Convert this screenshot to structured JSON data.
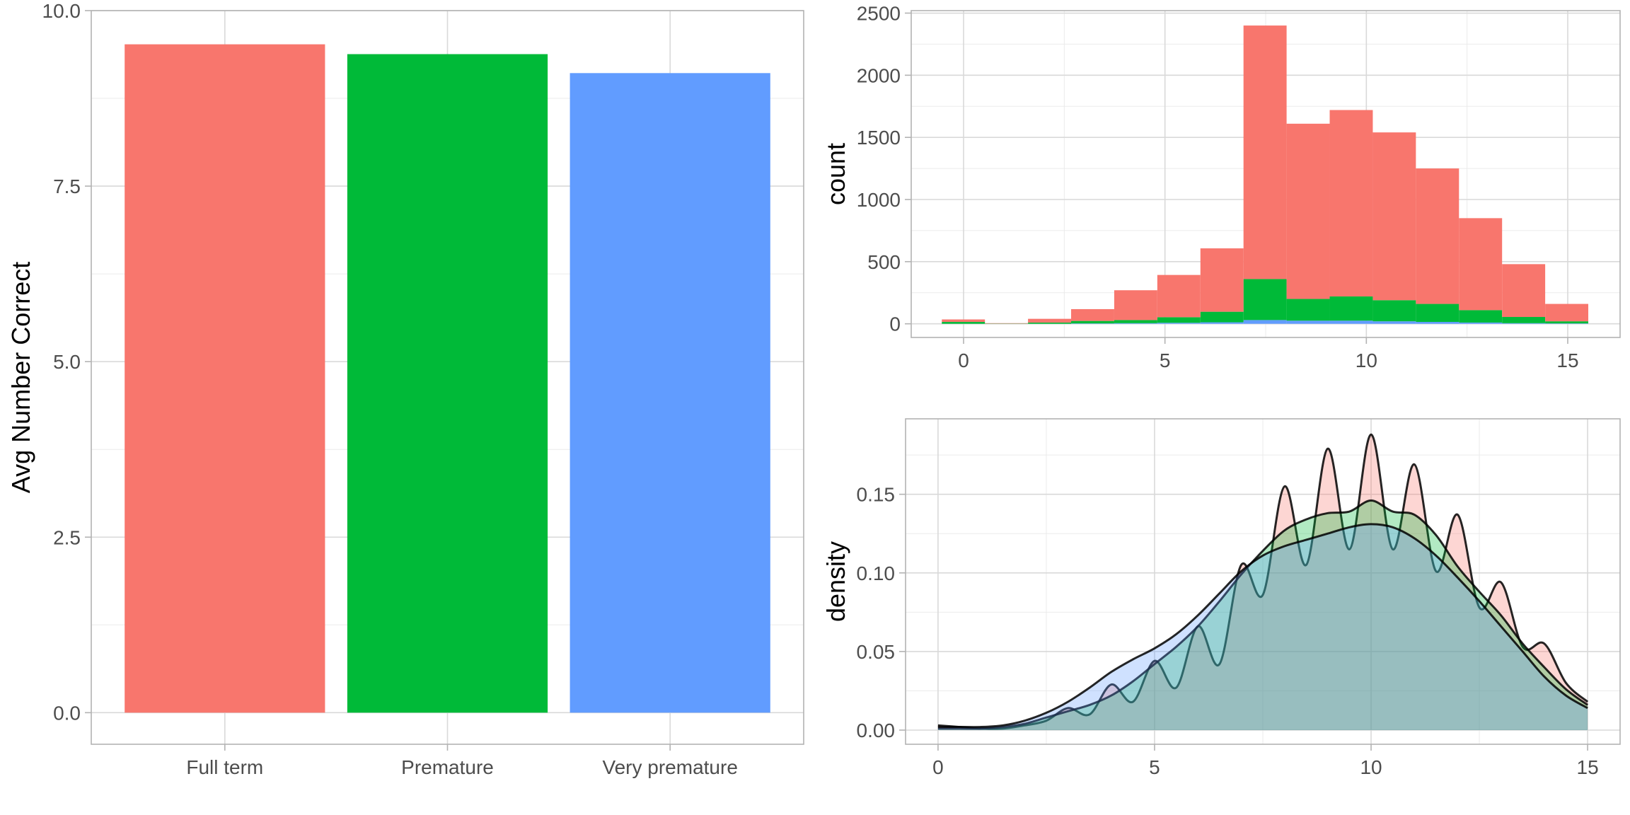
{
  "chart_data": [
    {
      "type": "bar",
      "categories": [
        "Full term",
        "Premature",
        "Very premature"
      ],
      "values": [
        9.52,
        9.38,
        9.11
      ],
      "colors": [
        "#F8766D",
        "#00BA38",
        "#619CFF"
      ],
      "title": "",
      "xlabel": "",
      "ylabel": "Avg Number Correct",
      "ylim": [
        -0.45,
        10.0
      ],
      "yticks": [
        0.0,
        2.5,
        5.0,
        7.5,
        10.0
      ],
      "ytick_labels": [
        "0.0",
        "2.5",
        "5.0",
        "7.5",
        "10.0"
      ],
      "grid": true,
      "legend": "none"
    },
    {
      "type": "histogram",
      "stacked": true,
      "bin_width": 1.07,
      "bin_starts": [
        -0.54,
        0.53,
        1.6,
        2.67,
        3.74,
        4.81,
        5.88,
        6.95,
        8.02,
        9.09,
        10.16,
        11.23,
        12.3,
        13.37,
        14.44
      ],
      "series": [
        {
          "color": "#619CFF",
          "values": [
            0,
            0,
            0,
            3,
            5,
            8,
            12,
            30,
            25,
            25,
            20,
            15,
            10,
            5,
            3
          ]
        },
        {
          "color": "#00BA38",
          "values": [
            15,
            2,
            10,
            20,
            25,
            45,
            85,
            330,
            175,
            195,
            170,
            145,
            100,
            50,
            17
          ]
        },
        {
          "color": "#F8766D",
          "values": [
            20,
            3,
            30,
            95,
            240,
            340,
            510,
            2040,
            1410,
            1500,
            1350,
            1090,
            740,
            425,
            140
          ]
        }
      ],
      "xlim": [
        -1.3,
        16.3
      ],
      "ylim": [
        -110,
        2520
      ],
      "xticks": [
        0,
        5,
        10,
        15
      ],
      "yticks": [
        0,
        500,
        1000,
        1500,
        2000,
        2500
      ],
      "xlabel": "",
      "ylabel": "count",
      "grid": true,
      "legend": "none"
    },
    {
      "type": "area",
      "subtype": "density",
      "x": [
        0,
        0.5,
        1,
        1.5,
        2,
        2.5,
        3,
        3.5,
        4,
        4.5,
        5,
        5.5,
        6,
        6.5,
        7,
        7.5,
        8,
        8.5,
        9,
        9.5,
        10,
        10.5,
        11,
        11.5,
        12,
        12.5,
        13,
        13.5,
        14,
        14.5,
        15
      ],
      "series": [
        {
          "fill": "#619CFF",
          "values": [
            0.002,
            0.002,
            0.002,
            0.003,
            0.006,
            0.011,
            0.018,
            0.027,
            0.037,
            0.045,
            0.052,
            0.061,
            0.073,
            0.087,
            0.101,
            0.111,
            0.117,
            0.121,
            0.125,
            0.129,
            0.131,
            0.129,
            0.122,
            0.111,
            0.097,
            0.082,
            0.066,
            0.05,
            0.034,
            0.022,
            0.014
          ]
        },
        {
          "fill": "#00BA38",
          "values": [
            0.001,
            0.001,
            0.001,
            0.002,
            0.004,
            0.008,
            0.012,
            0.016,
            0.022,
            0.031,
            0.042,
            0.053,
            0.066,
            0.082,
            0.099,
            0.114,
            0.127,
            0.134,
            0.138,
            0.139,
            0.146,
            0.139,
            0.137,
            0.124,
            0.104,
            0.088,
            0.073,
            0.055,
            0.04,
            0.026,
            0.016
          ]
        },
        {
          "fill": "#F8766D",
          "values": [
            0.003,
            0.002,
            0.001,
            0.001,
            0.003,
            0.006,
            0.014,
            0.01,
            0.029,
            0.018,
            0.044,
            0.027,
            0.066,
            0.042,
            0.105,
            0.086,
            0.155,
            0.105,
            0.179,
            0.115,
            0.188,
            0.115,
            0.169,
            0.101,
            0.137,
            0.078,
            0.094,
            0.053,
            0.055,
            0.03,
            0.018
          ]
        }
      ],
      "xlim": [
        -0.75,
        15.75
      ],
      "ylim": [
        -0.009,
        0.198
      ],
      "xticks": [
        0,
        5,
        10,
        15
      ],
      "yticks": [
        0.0,
        0.05,
        0.1,
        0.15
      ],
      "ytick_labels": [
        "0.00",
        "0.05",
        "0.10",
        "0.15"
      ],
      "xlabel": "",
      "ylabel": "density",
      "grid": true,
      "legend": "none"
    }
  ]
}
